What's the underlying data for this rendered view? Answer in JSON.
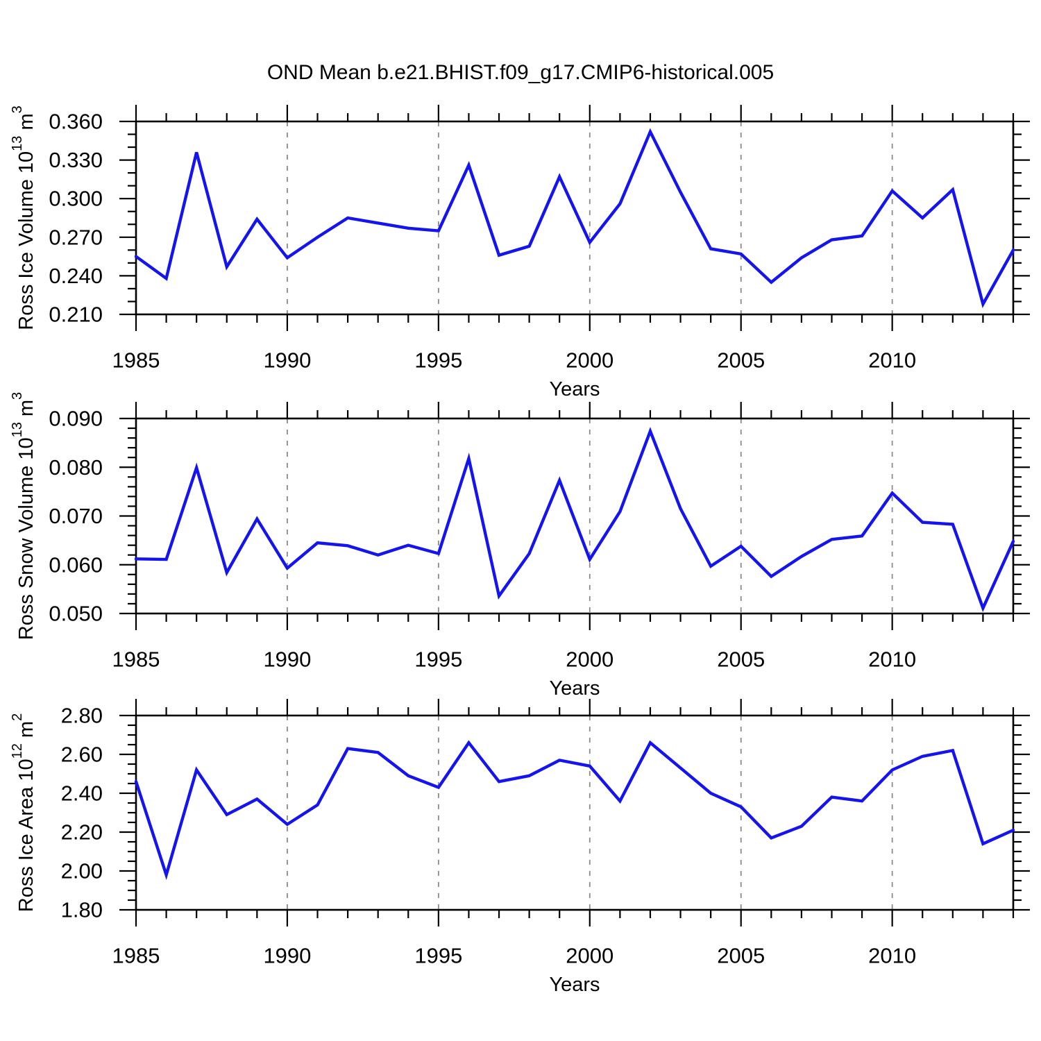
{
  "title": "OND Mean b.e21.BHIST.f09_g17.CMIP6-historical.005",
  "colors": {
    "line": "#1414f0",
    "grid": "#8a8a8a",
    "axis": "#000000",
    "background": "#ffffff"
  },
  "chart_data": [
    {
      "type": "line",
      "ylabel_plain": "Ross Ice Volume 10^13 m^3",
      "ylabel_parts": [
        {
          "text": "Ross Ice Volume 10"
        },
        {
          "text": "13",
          "sup": true
        },
        {
          "text": " m"
        },
        {
          "text": "3",
          "sup": true
        }
      ],
      "xlabel": "Years",
      "xlim": [
        1985,
        2014
      ],
      "ylim": [
        0.21,
        0.36
      ],
      "x_major_ticks": [
        1985,
        1990,
        1995,
        2000,
        2005,
        2010
      ],
      "x_tick_labels": [
        "1985",
        "1990",
        "1995",
        "2000",
        "2005",
        "2010"
      ],
      "x_minor_step": 1,
      "grid_x": [
        1990,
        1995,
        2000,
        2005,
        2010
      ],
      "y_major_ticks": [
        0.21,
        0.24,
        0.27,
        0.3,
        0.33,
        0.36
      ],
      "y_tick_labels": [
        "0.210",
        "0.240",
        "0.270",
        "0.300",
        "0.330",
        "0.360"
      ],
      "y_minor_step": 0.01,
      "x": [
        1985,
        1986,
        1987,
        1988,
        1989,
        1990,
        1991,
        1992,
        1993,
        1994,
        1995,
        1996,
        1997,
        1998,
        1999,
        2000,
        2001,
        2002,
        2003,
        2004,
        2005,
        2006,
        2007,
        2008,
        2009,
        2010,
        2011,
        2012,
        2013,
        2014
      ],
      "values": [
        0.255,
        0.238,
        0.336,
        0.247,
        0.284,
        0.254,
        0.27,
        0.285,
        0.281,
        0.277,
        0.275,
        0.326,
        0.256,
        0.263,
        0.317,
        0.266,
        0.296,
        0.352,
        0.305,
        0.261,
        0.257,
        0.235,
        0.254,
        0.268,
        0.271,
        0.306,
        0.285,
        0.307,
        0.218,
        0.26
      ]
    },
    {
      "type": "line",
      "ylabel_plain": "Ross Snow Volume 10^13 m^3",
      "ylabel_parts": [
        {
          "text": "Ross Snow Volume 10"
        },
        {
          "text": "13",
          "sup": true
        },
        {
          "text": " m"
        },
        {
          "text": "3",
          "sup": true
        }
      ],
      "xlabel": "Years",
      "xlim": [
        1985,
        2014
      ],
      "ylim": [
        0.05,
        0.09
      ],
      "x_major_ticks": [
        1985,
        1990,
        1995,
        2000,
        2005,
        2010
      ],
      "x_tick_labels": [
        "1985",
        "1990",
        "1995",
        "2000",
        "2005",
        "2010"
      ],
      "x_minor_step": 1,
      "grid_x": [
        1990,
        1995,
        2000,
        2005,
        2010
      ],
      "y_major_ticks": [
        0.05,
        0.06,
        0.07,
        0.08,
        0.09
      ],
      "y_tick_labels": [
        "0.050",
        "0.060",
        "0.070",
        "0.080",
        "0.090"
      ],
      "y_minor_step": 0.002,
      "x": [
        1985,
        1986,
        1987,
        1988,
        1989,
        1990,
        1991,
        1992,
        1993,
        1994,
        1995,
        1996,
        1997,
        1998,
        1999,
        2000,
        2001,
        2002,
        2003,
        2004,
        2005,
        2006,
        2007,
        2008,
        2009,
        2010,
        2011,
        2012,
        2013,
        2014
      ],
      "values": [
        0.0612,
        0.0611,
        0.0799,
        0.0584,
        0.0694,
        0.0593,
        0.0645,
        0.0639,
        0.062,
        0.064,
        0.0623,
        0.0818,
        0.0536,
        0.0623,
        0.0773,
        0.0611,
        0.0709,
        0.0874,
        0.0715,
        0.0597,
        0.0638,
        0.0576,
        0.0617,
        0.0652,
        0.0659,
        0.0747,
        0.0687,
        0.0683,
        0.0511,
        0.0648
      ]
    },
    {
      "type": "line",
      "ylabel_plain": "Ross Ice Area 10^12 m^2",
      "ylabel_parts": [
        {
          "text": "Ross Ice Area 10"
        },
        {
          "text": "12",
          "sup": true
        },
        {
          "text": " m"
        },
        {
          "text": "2",
          "sup": true
        }
      ],
      "xlabel": "Years",
      "xlim": [
        1985,
        2014
      ],
      "ylim": [
        1.8,
        2.8
      ],
      "x_major_ticks": [
        1985,
        1990,
        1995,
        2000,
        2005,
        2010
      ],
      "x_tick_labels": [
        "1985",
        "1990",
        "1995",
        "2000",
        "2005",
        "2010"
      ],
      "x_minor_step": 1,
      "grid_x": [
        1990,
        1995,
        2000,
        2005,
        2010
      ],
      "y_major_ticks": [
        1.8,
        2.0,
        2.2,
        2.4,
        2.6,
        2.8
      ],
      "y_tick_labels": [
        "1.80",
        "2.00",
        "2.20",
        "2.40",
        "2.60",
        "2.80"
      ],
      "y_minor_step": 0.05,
      "x": [
        1985,
        1986,
        1987,
        1988,
        1989,
        1990,
        1991,
        1992,
        1993,
        1994,
        1995,
        1996,
        1997,
        1998,
        1999,
        2000,
        2001,
        2002,
        2003,
        2004,
        2005,
        2006,
        2007,
        2008,
        2009,
        2010,
        2011,
        2012,
        2013,
        2014
      ],
      "values": [
        2.46,
        1.98,
        2.52,
        2.29,
        2.37,
        2.24,
        2.34,
        2.63,
        2.61,
        2.49,
        2.43,
        2.66,
        2.46,
        2.49,
        2.57,
        2.54,
        2.36,
        2.66,
        2.53,
        2.4,
        2.33,
        2.17,
        2.23,
        2.38,
        2.36,
        2.52,
        2.59,
        2.62,
        2.14,
        2.21
      ]
    }
  ]
}
